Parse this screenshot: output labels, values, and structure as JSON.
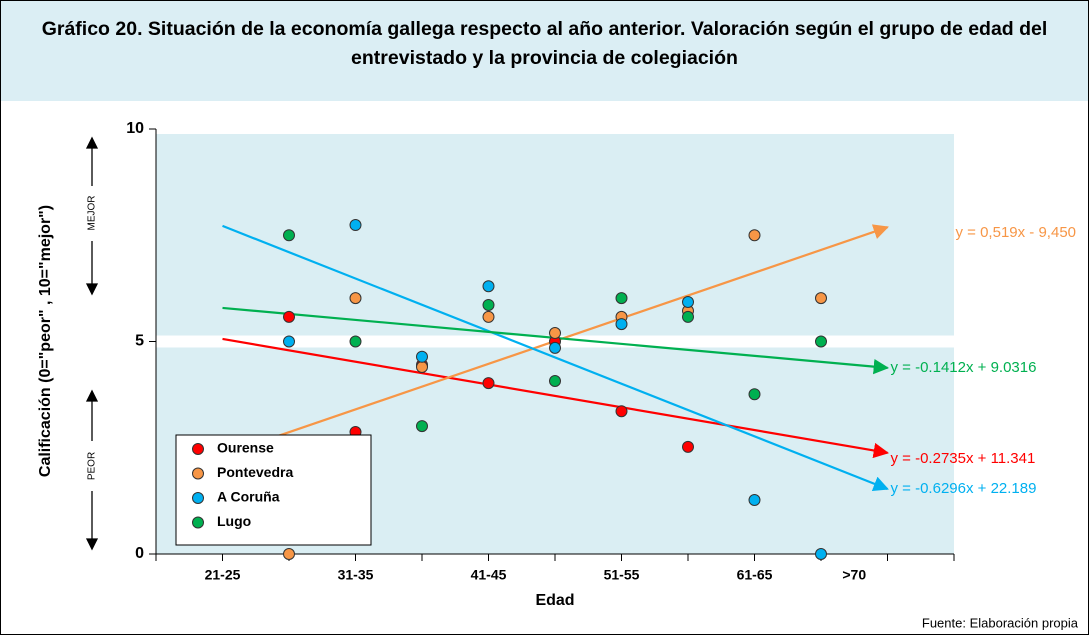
{
  "chart_data": {
    "type": "scatter",
    "title": "Gráfico 20. Situación de la economía gallega respecto al año anterior. Valoración según el grupo de edad del entrevistado y la provincia de colegiación",
    "x_label": "Edad",
    "y_label": "Calificación (0=\"peor\" , 10=\"mejor\")",
    "y_annotations": [
      "MEJOR",
      "PEOR"
    ],
    "source": "Fuente: Elaboración propia",
    "xlim": [
      0,
      12
    ],
    "xticks": [
      {
        "value": 1,
        "label": "21-25"
      },
      {
        "value": 3,
        "label": "31-35"
      },
      {
        "value": 5,
        "label": "41-45"
      },
      {
        "value": 7,
        "label": "51-55"
      },
      {
        "value": 9,
        "label": "61-65"
      },
      {
        "value": 10.5,
        "label": ">70"
      }
    ],
    "ylim": [
      0,
      10
    ],
    "yticks": [
      0,
      5,
      10
    ],
    "grid": true,
    "legend": "lower left",
    "series": [
      {
        "name": "Ourense",
        "color": "#ff0000",
        "x": [
          2,
          3,
          4,
          5,
          6,
          7,
          8
        ],
        "values": [
          5.58,
          2.87,
          4.45,
          4.02,
          5.0,
          3.36,
          2.52
        ],
        "trend": {
          "equation": "y = -0.2735x + 11.341",
          "x": [
            1,
            11
          ],
          "y": [
            5.06,
            2.38
          ]
        }
      },
      {
        "name": "Pontevedra",
        "color": "#f79646",
        "x": [
          2,
          3,
          4,
          5,
          6,
          7,
          8,
          9,
          10
        ],
        "values": [
          0,
          6.02,
          4.4,
          5.58,
          5.2,
          5.58,
          5.72,
          7.5,
          6.02
        ],
        "trend": {
          "equation": "y = 0,519x - 9,450",
          "x": [
            1,
            11
          ],
          "y": [
            2.33,
            7.69
          ]
        }
      },
      {
        "name": "A Coruña",
        "color": "#00b0f0",
        "x": [
          2,
          3,
          4,
          5,
          6,
          7,
          8,
          9,
          10
        ],
        "values": [
          5.0,
          7.74,
          4.64,
          6.3,
          4.85,
          5.41,
          5.93,
          1.27,
          0
        ],
        "trend": {
          "equation": "y = -0.6296x + 22.189",
          "x": [
            1,
            11
          ],
          "y": [
            7.72,
            1.53
          ]
        }
      },
      {
        "name": "Lugo",
        "color": "#00b050",
        "x": [
          2,
          3,
          4,
          5,
          6,
          7,
          8,
          9,
          10
        ],
        "values": [
          7.5,
          5.0,
          3.01,
          5.86,
          4.07,
          6.02,
          5.58,
          3.76,
          5.0
        ],
        "trend": {
          "equation": "y = -0.1412x + 9.0316",
          "x": [
            1,
            11
          ],
          "y": [
            5.79,
            4.38
          ]
        }
      }
    ]
  }
}
